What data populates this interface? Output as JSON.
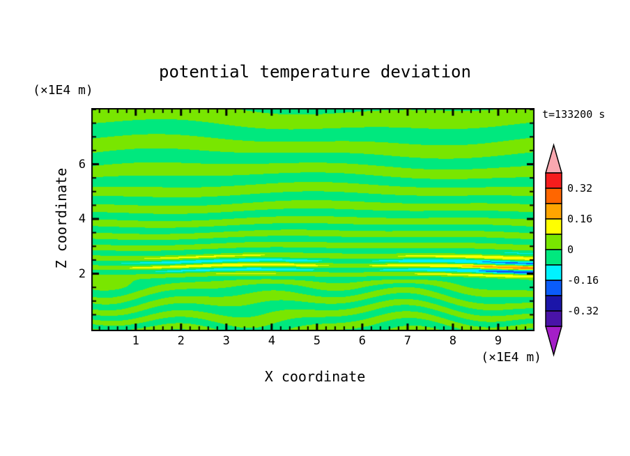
{
  "chart_data": {
    "type": "filled-contour",
    "title": "potential temperature deviation",
    "xlabel": "X coordinate",
    "ylabel": "Z coordinate",
    "x_unit_label": "(×1E4 m)",
    "z_unit_label": "(×1E4 m)",
    "time_label": "t=133200 s",
    "x_range": [
      0.05,
      9.77
    ],
    "z_range": [
      -0.05,
      8.0
    ],
    "x_major_ticks": [
      1,
      2,
      3,
      4,
      5,
      6,
      7,
      8,
      9
    ],
    "x_tick_labels": [
      "1",
      "2",
      "3",
      "4",
      "5",
      "6",
      "7",
      "8",
      "9"
    ],
    "x_minor_step": 0.2,
    "z_major_ticks": [
      2,
      4,
      6
    ],
    "z_tick_labels": [
      "2",
      "4",
      "6"
    ],
    "z_minor_step": 0.5,
    "contour_interval": 0.08,
    "levels": [
      -0.4,
      -0.32,
      -0.24,
      -0.16,
      -0.08,
      0,
      0.08,
      0.16,
      0.24,
      0.32,
      0.4
    ],
    "palette": [
      {
        "min": 0.32,
        "color": "#F51D1D"
      },
      {
        "min": 0.24,
        "color": "#FF6600"
      },
      {
        "min": 0.16,
        "color": "#FFA500"
      },
      {
        "min": 0.08,
        "color": "#FFFF00"
      },
      {
        "min": 0.0,
        "color": "#79E600"
      },
      {
        "min": -0.08,
        "color": "#00E87E"
      },
      {
        "min": -0.16,
        "color": "#00F2FF"
      },
      {
        "min": -0.24,
        "color": "#0A5CFA"
      },
      {
        "min": -0.32,
        "color": "#1B15A8"
      },
      {
        "min": -0.4,
        "color": "#4913A8"
      }
    ],
    "colorbar": {
      "blocks_top_to_bottom": [
        "#F51D1D",
        "#FF6600",
        "#FFA500",
        "#FFFF00",
        "#79E600",
        "#00E87E",
        "#00F2FF",
        "#0A5CFA",
        "#1B15A8",
        "#4913A8"
      ],
      "arrow_up_color": "#F9A8B0",
      "arrow_down_color": "#A41EC8",
      "labels": [
        "0.32",
        "0.16",
        "0",
        "-0.16",
        "-0.32"
      ],
      "label_values": [
        0.32,
        0.16,
        0,
        -0.16,
        -0.32
      ]
    },
    "field_model": {
      "phase_scale": 98.5,
      "phase_atan_k": 0.255,
      "turb_z": 1.95,
      "turb_width": 0.5,
      "turb_compress": 0.45,
      "amp_base": 0.046,
      "amp_wobble": 0.012,
      "amp_wobble_freq": 3.0,
      "streak_z": 2.35,
      "streak_sigma": 0.4,
      "streak_amp": 0.1,
      "streak_base": 0.012,
      "streak_xfreq": 0.55,
      "streak_xpow": 1.3,
      "streak_xgain_min": 0.35,
      "hot_z": 2.12,
      "hot_sigma": 0.2,
      "hot_amp": 0.14,
      "hot_x_sigma": 1.0
    }
  }
}
